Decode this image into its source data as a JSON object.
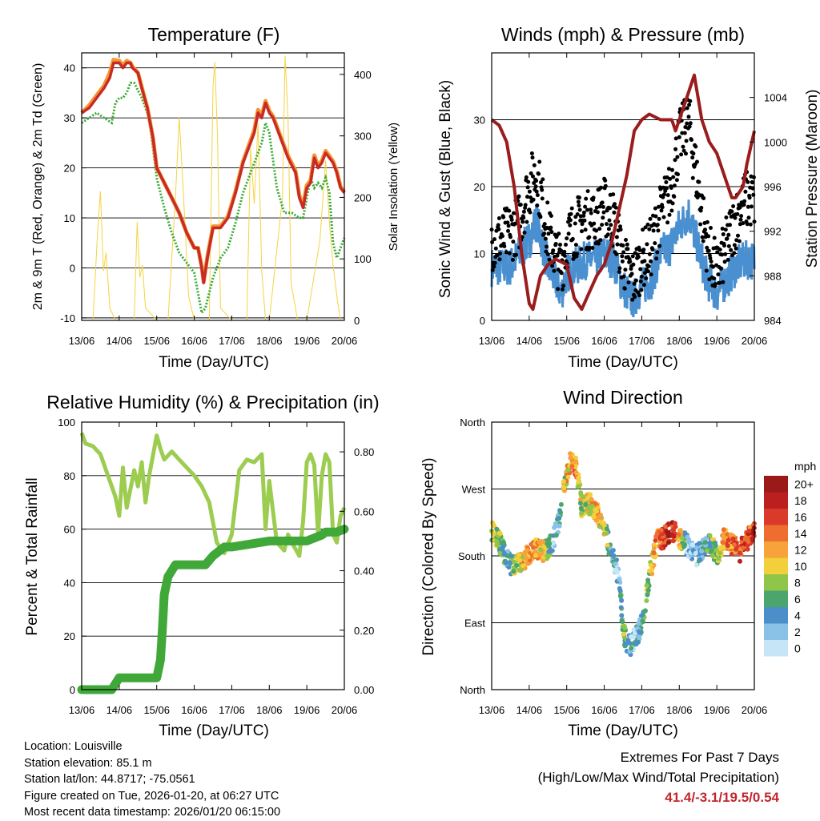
{
  "footer": {
    "location": "Location: Louisville",
    "elevation": "Station elevation: 85.1 m",
    "latlon": "Station lat/lon: 44.8717; -75.0561",
    "created": "Figure created on Tue, 2026-01-20, at 06:27 UTC",
    "latest": "Most recent data timestamp: 2026/01/20 06:15:00"
  },
  "extremes": {
    "title": "Extremes For Past 7 Days",
    "subtitle": "(High/Low/Max Wind/Total Precipitation)",
    "values": "41.4/-3.1/19.5/0.54"
  },
  "colors": {
    "temp2m": "#c82a28",
    "temp9m": "#f7962e",
    "dewpoint": "#3aaa35",
    "solar": "#f5d340",
    "wind": "#4a90d0",
    "gust": "#000000",
    "pressure": "#9b1c1c",
    "rh": "#9ccc50",
    "rain": "#40a838"
  },
  "chart_data": [
    {
      "type": "line",
      "title": "Temperature (F)",
      "xlabel": "Time (Day/UTC)",
      "ylabel": "2m & 9m T (Red, Orange) & 2m Td (Green)",
      "y2label": "Solar Insolation (Yellow)",
      "x_ticks": [
        "13/06",
        "14/06",
        "15/06",
        "16/06",
        "17/06",
        "18/06",
        "19/06",
        "20/06"
      ],
      "xlim": [
        0,
        7
      ],
      "ylim": [
        -10.5,
        43
      ],
      "yticks": [
        -10,
        0,
        10,
        20,
        30,
        40
      ],
      "y2lim": [
        0,
        435
      ],
      "y2ticks": [
        0,
        100,
        200,
        300,
        400
      ],
      "series": [
        {
          "name": "2m T",
          "axis": "left",
          "x": [
            0,
            0.2,
            0.4,
            0.6,
            0.75,
            0.85,
            1.0,
            1.1,
            1.2,
            1.3,
            1.35,
            1.5,
            1.6,
            1.75,
            1.9,
            2.0,
            2.2,
            2.4,
            2.6,
            2.8,
            3.0,
            3.1,
            3.2,
            3.25,
            3.35,
            3.5,
            3.7,
            3.9,
            4.1,
            4.3,
            4.5,
            4.6,
            4.7,
            4.8,
            4.9,
            5.0,
            5.1,
            5.3,
            5.5,
            5.7,
            5.8,
            5.9,
            6.0,
            6.1,
            6.2,
            6.3,
            6.4,
            6.5,
            6.6,
            6.7,
            6.8,
            6.9,
            7.0
          ],
          "y": [
            31,
            32,
            34,
            36,
            38,
            41,
            41,
            40,
            41,
            41,
            40,
            39,
            36,
            32,
            26,
            20,
            17,
            14,
            11,
            7,
            4,
            4,
            0,
            -3,
            2,
            8,
            8,
            10,
            15,
            21,
            25,
            27,
            31,
            30,
            33,
            31,
            30,
            26,
            22,
            19,
            14,
            12,
            16,
            17,
            22,
            20,
            21,
            23,
            22,
            21,
            19,
            16,
            15
          ]
        },
        {
          "name": "9m T",
          "axis": "left",
          "x": [
            0,
            0.2,
            0.4,
            0.6,
            0.75,
            0.85,
            1.0,
            1.1,
            1.2,
            1.3,
            1.35,
            1.5,
            1.6,
            1.75,
            1.9,
            2.0,
            2.2,
            2.4,
            2.6,
            2.8,
            3.0,
            3.1,
            3.2,
            3.25,
            3.35,
            3.5,
            3.7,
            3.9,
            4.1,
            4.3,
            4.5,
            4.6,
            4.7,
            4.8,
            4.9,
            5.0,
            5.1,
            5.3,
            5.5,
            5.7,
            5.8,
            5.9,
            6.0,
            6.1,
            6.2,
            6.3,
            6.4,
            6.5,
            6.6,
            6.7,
            6.8,
            6.9,
            7.0
          ],
          "y": [
            31,
            32.5,
            34.5,
            36.5,
            39,
            41.6,
            41.4,
            40.5,
            41.4,
            41,
            40.3,
            39,
            36.2,
            32,
            26,
            20,
            17,
            14,
            11,
            7,
            4,
            4,
            0.3,
            -2.8,
            2.3,
            8.3,
            8.3,
            10.3,
            15.3,
            21.3,
            25.5,
            27.5,
            31.6,
            30.5,
            33.4,
            31.4,
            30.3,
            26.3,
            22.4,
            19.4,
            14.5,
            12.5,
            16.5,
            17.5,
            22.5,
            20.4,
            21.4,
            23.4,
            22.4,
            21.3,
            19.3,
            16.2,
            15.2
          ]
        },
        {
          "name": "2m Td",
          "axis": "left",
          "x": [
            0,
            0.2,
            0.4,
            0.6,
            0.8,
            0.9,
            1.0,
            1.1,
            1.2,
            1.3,
            1.4,
            1.6,
            1.8,
            2.0,
            2.2,
            2.4,
            2.6,
            2.8,
            3.0,
            3.1,
            3.2,
            3.3,
            3.5,
            3.7,
            3.9,
            4.1,
            4.3,
            4.5,
            4.7,
            4.8,
            4.9,
            5.0,
            5.2,
            5.4,
            5.6,
            5.8,
            5.9,
            6.0,
            6.1,
            6.2,
            6.3,
            6.4,
            6.5,
            6.6,
            6.7,
            6.8,
            6.9,
            7.0
          ],
          "y": [
            29,
            30,
            31,
            30,
            29,
            33,
            34,
            34,
            35,
            37,
            37,
            34,
            30,
            18,
            12,
            7,
            3,
            1,
            -1,
            -5,
            -9,
            -8,
            -2,
            2,
            4,
            9,
            15,
            19,
            23,
            25,
            29,
            27,
            16,
            11,
            11,
            10,
            10,
            14,
            18,
            16,
            17,
            16,
            18,
            15,
            5,
            2,
            4,
            6
          ]
        },
        {
          "name": "Solar Insolation",
          "axis": "right",
          "x": [
            0,
            0.3,
            0.42,
            0.5,
            0.58,
            0.65,
            0.75,
            0.9,
            1.05,
            1.4,
            1.48,
            1.55,
            1.62,
            1.7,
            2.0,
            2.3,
            2.5,
            2.6,
            2.7,
            2.85,
            3.0,
            3.4,
            3.5,
            3.55,
            3.62,
            3.7,
            4.0,
            4.4,
            4.5,
            4.6,
            4.7,
            4.8,
            4.9,
            5.0,
            5.35,
            5.42,
            5.5,
            5.58,
            5.7,
            5.75,
            6.0,
            6.35,
            6.5,
            6.6,
            6.7,
            6.82,
            6.9
          ],
          "y": [
            0,
            0,
            140,
            210,
            80,
            110,
            20,
            0,
            0,
            0,
            160,
            70,
            90,
            20,
            0,
            0,
            200,
            330,
            220,
            40,
            0,
            0,
            380,
            420,
            300,
            20,
            0,
            0,
            280,
            190,
            320,
            80,
            0,
            0,
            200,
            430,
            330,
            60,
            20,
            0,
            0,
            130,
            260,
            160,
            90,
            30,
            0
          ]
        }
      ]
    },
    {
      "type": "line+scatter",
      "title": "Winds (mph) & Pressure (mb)",
      "xlabel": "Time (Day/UTC)",
      "ylabel": "Sonic Wind & Gust (Blue, Black)",
      "y2label": "Station Pressure (Maroon)",
      "x_ticks": [
        "13/06",
        "14/06",
        "15/06",
        "16/06",
        "17/06",
        "18/06",
        "19/06",
        "20/06"
      ],
      "xlim": [
        0,
        7
      ],
      "ylim": [
        0,
        40
      ],
      "yticks": [
        0,
        10,
        20,
        30
      ],
      "y2lim": [
        984,
        1008
      ],
      "y2ticks": [
        984,
        988,
        992,
        996,
        1000,
        1004
      ],
      "series": [
        {
          "name": "Sonic Wind",
          "axis": "left",
          "x": [
            0,
            0.25,
            0.5,
            0.75,
            1.0,
            1.2,
            1.5,
            1.7,
            1.85,
            2.0,
            2.25,
            2.5,
            2.75,
            3.0,
            3.25,
            3.5,
            3.75,
            4.0,
            4.25,
            4.5,
            4.75,
            5.0,
            5.25,
            5.5,
            5.75,
            6.0,
            6.25,
            6.5,
            6.75,
            7.0
          ],
          "y": [
            8,
            8,
            8,
            10,
            12,
            15,
            8,
            6,
            4,
            7,
            8,
            9,
            9,
            10,
            9,
            5,
            3,
            5,
            6,
            10,
            11,
            14,
            16,
            11,
            6,
            4,
            6,
            8,
            9,
            9
          ]
        },
        {
          "name": "Gust",
          "axis": "left",
          "x": [
            0,
            0.25,
            0.5,
            0.75,
            1.0,
            1.2,
            1.5,
            1.7,
            1.85,
            2.0,
            2.25,
            2.5,
            2.75,
            3.0,
            3.25,
            3.5,
            3.75,
            4.0,
            4.25,
            4.5,
            4.75,
            5.0,
            5.25,
            5.5,
            5.75,
            6.0,
            6.25,
            6.5,
            6.75,
            7.0
          ],
          "y": [
            12,
            12,
            13,
            15,
            20,
            22,
            13,
            10,
            8,
            12,
            14,
            15,
            15,
            17,
            15,
            9,
            6,
            9,
            11,
            16,
            19,
            27,
            30,
            20,
            11,
            7,
            11,
            15,
            18,
            18
          ]
        },
        {
          "name": "Station Pressure",
          "axis": "right",
          "x": [
            0,
            0.2,
            0.4,
            0.6,
            0.8,
            1.0,
            1.1,
            1.3,
            1.5,
            1.7,
            2.0,
            2.2,
            2.4,
            2.6,
            2.8,
            3.0,
            3.2,
            3.4,
            3.6,
            3.8,
            4.0,
            4.2,
            4.5,
            4.8,
            4.9,
            5.0,
            5.2,
            5.4,
            5.5,
            5.6,
            5.8,
            6.0,
            6.2,
            6.4,
            6.5,
            6.7,
            6.8,
            6.9,
            7.0
          ],
          "y": [
            1002,
            1001.5,
            1000,
            996,
            990,
            985.5,
            985,
            988,
            989,
            989.5,
            989,
            986,
            985,
            986.5,
            988,
            989,
            991,
            994,
            997,
            1001,
            1002,
            1002.5,
            1002,
            1002,
            1001,
            1002,
            1004,
            1006,
            1004,
            1002,
            1000,
            999,
            997,
            995,
            995,
            996,
            998,
            999.5,
            1001
          ]
        }
      ]
    },
    {
      "type": "line",
      "title": "Relative Humidity (%) & Precipitation (in)",
      "xlabel": "Time (Day/UTC)",
      "ylabel": "Percent & Total Rainfall",
      "x_ticks": [
        "13/06",
        "14/06",
        "15/06",
        "16/06",
        "17/06",
        "18/06",
        "19/06",
        "20/06"
      ],
      "xlim": [
        0,
        7
      ],
      "ylim": [
        0,
        100
      ],
      "yticks": [
        0,
        20,
        40,
        60,
        80,
        100
      ],
      "y2lim": [
        0,
        0.9
      ],
      "y2ticks": [
        "0.00",
        "0.20",
        "0.40",
        "0.60",
        "0.80"
      ],
      "series": [
        {
          "name": "Relative Humidity",
          "axis": "left",
          "x": [
            0,
            0.1,
            0.3,
            0.5,
            0.7,
            0.9,
            1.0,
            1.1,
            1.2,
            1.3,
            1.4,
            1.5,
            1.6,
            1.7,
            1.8,
            2.0,
            2.1,
            2.2,
            2.4,
            2.6,
            2.8,
            3.0,
            3.2,
            3.4,
            3.6,
            3.8,
            4.0,
            4.2,
            4.4,
            4.6,
            4.8,
            4.9,
            5.0,
            5.2,
            5.4,
            5.5,
            5.6,
            5.8,
            5.9,
            6.0,
            6.1,
            6.2,
            6.3,
            6.4,
            6.5,
            6.6,
            6.7,
            6.8,
            6.9,
            7.0
          ],
          "y": [
            96,
            92,
            91,
            88,
            80,
            72,
            65,
            83,
            68,
            75,
            82,
            76,
            85,
            70,
            80,
            95,
            90,
            86,
            89,
            86,
            83,
            80,
            76,
            70,
            55,
            51,
            58,
            82,
            86,
            85,
            88,
            60,
            78,
            55,
            52,
            58,
            55,
            50,
            63,
            85,
            88,
            84,
            58,
            80,
            88,
            85,
            58,
            55,
            65,
            68
          ]
        },
        {
          "name": "Total Precipitation",
          "axis": "right",
          "x": [
            0,
            0.5,
            0.8,
            0.9,
            1.0,
            1.5,
            2.0,
            2.1,
            2.15,
            2.2,
            2.3,
            2.5,
            3.0,
            3.3,
            3.5,
            3.8,
            4.0,
            4.5,
            5.0,
            5.5,
            6.0,
            6.4,
            6.5,
            6.8,
            7.0
          ],
          "y": [
            0,
            0,
            0,
            0.02,
            0.04,
            0.04,
            0.04,
            0.1,
            0.2,
            0.32,
            0.38,
            0.42,
            0.42,
            0.42,
            0.45,
            0.48,
            0.48,
            0.49,
            0.5,
            0.5,
            0.5,
            0.52,
            0.53,
            0.53,
            0.54
          ]
        }
      ]
    },
    {
      "type": "scatter",
      "title": "Wind Direction",
      "xlabel": "Time (Day/UTC)",
      "ylabel": "Direction (Colored By Speed)",
      "x_ticks": [
        "13/06",
        "14/06",
        "15/06",
        "16/06",
        "17/06",
        "18/06",
        "19/06",
        "20/06"
      ],
      "xlim": [
        0,
        7
      ],
      "ylim": [
        0,
        360
      ],
      "y_ticks": [
        "North",
        "East",
        "South",
        "West",
        "North"
      ],
      "colorbar": {
        "unit": "mph",
        "labels": [
          "0",
          "2",
          "4",
          "6",
          "8",
          "10",
          "12",
          "14",
          "16",
          "18",
          "20+"
        ],
        "colors": [
          "#c6e6f8",
          "#8ac1e6",
          "#4a8fc9",
          "#4ba56d",
          "#8fc649",
          "#f3cf3b",
          "#f7a23a",
          "#ef6d2e",
          "#da3a29",
          "#bc1f1f",
          "#9a1a1a"
        ]
      },
      "points": {
        "x": [
          0,
          0.2,
          0.4,
          0.6,
          0.8,
          1.0,
          1.2,
          1.4,
          1.6,
          1.8,
          1.9,
          2.0,
          2.1,
          2.2,
          2.3,
          2.4,
          2.6,
          2.8,
          3.0,
          3.2,
          3.4,
          3.5,
          3.6,
          3.7,
          3.8,
          3.9,
          4.0,
          4.2,
          4.4,
          4.6,
          4.8,
          5.0,
          5.2,
          5.4,
          5.6,
          5.8,
          6.0,
          6.2,
          6.4,
          6.6,
          6.8,
          7.0
        ],
        "y": [
          215,
          200,
          175,
          165,
          175,
          180,
          190,
          185,
          195,
          230,
          265,
          290,
          305,
          310,
          285,
          245,
          250,
          240,
          220,
          180,
          150,
          80,
          65,
          60,
          70,
          75,
          90,
          150,
          200,
          205,
          215,
          205,
          195,
          180,
          185,
          200,
          180,
          205,
          195,
          185,
          200,
          215
        ],
        "speed": [
          9,
          7,
          5,
          8,
          11,
          12,
          13,
          10,
          3,
          4,
          8,
          11,
          13,
          14,
          10,
          8,
          10,
          12,
          9,
          3,
          2,
          7,
          5,
          3,
          3,
          4,
          5,
          8,
          14,
          16,
          18,
          12,
          2,
          3,
          4,
          6,
          8,
          12,
          14,
          16,
          15,
          17
        ]
      }
    }
  ]
}
